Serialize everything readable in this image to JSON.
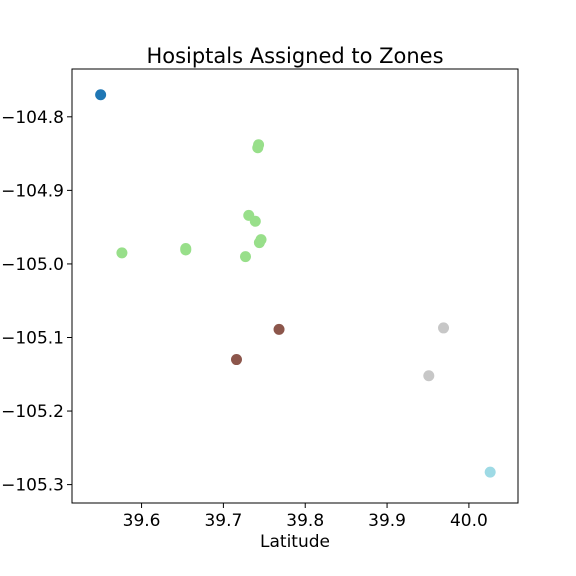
{
  "chart_data": {
    "type": "scatter",
    "title": "Hosiptals Assigned to Zones",
    "xlabel": "Latitude",
    "ylabel": "",
    "xlim": [
      39.515,
      40.06
    ],
    "ylim": [
      -105.325,
      -104.735
    ],
    "xticks": [
      39.6,
      39.7,
      39.8,
      39.9,
      40.0
    ],
    "xtick_labels": [
      "39.6",
      "39.7",
      "39.8",
      "39.9",
      "40.0"
    ],
    "yticks": [
      -104.8,
      -104.9,
      -105.0,
      -105.1,
      -105.2,
      -105.3
    ],
    "ytick_labels": [
      "−104.8",
      "−104.9",
      "−105.0",
      "−105.1",
      "−105.2",
      "−105.3"
    ],
    "grid": false,
    "legend": "none",
    "colors": {
      "zone_a": "#1f77b4",
      "zone_b": "#98df8a",
      "zone_c": "#8c564b",
      "zone_d": "#c7c7c7",
      "zone_e": "#9edae5"
    },
    "points": [
      {
        "x": 39.55,
        "y": -104.77,
        "color": "zone_a"
      },
      {
        "x": 39.743,
        "y": -104.838,
        "color": "zone_b"
      },
      {
        "x": 39.742,
        "y": -104.842,
        "color": "zone_b"
      },
      {
        "x": 39.731,
        "y": -104.934,
        "color": "zone_b"
      },
      {
        "x": 39.739,
        "y": -104.942,
        "color": "zone_b"
      },
      {
        "x": 39.746,
        "y": -104.967,
        "color": "zone_b"
      },
      {
        "x": 39.744,
        "y": -104.971,
        "color": "zone_b"
      },
      {
        "x": 39.654,
        "y": -104.979,
        "color": "zone_b"
      },
      {
        "x": 39.654,
        "y": -104.981,
        "color": "zone_b"
      },
      {
        "x": 39.576,
        "y": -104.985,
        "color": "zone_b"
      },
      {
        "x": 39.727,
        "y": -104.99,
        "color": "zone_b"
      },
      {
        "x": 39.768,
        "y": -105.089,
        "color": "zone_c"
      },
      {
        "x": 39.716,
        "y": -105.13,
        "color": "zone_c"
      },
      {
        "x": 39.969,
        "y": -105.087,
        "color": "zone_d"
      },
      {
        "x": 39.951,
        "y": -105.152,
        "color": "zone_d"
      },
      {
        "x": 40.026,
        "y": -105.283,
        "color": "zone_e"
      }
    ]
  }
}
